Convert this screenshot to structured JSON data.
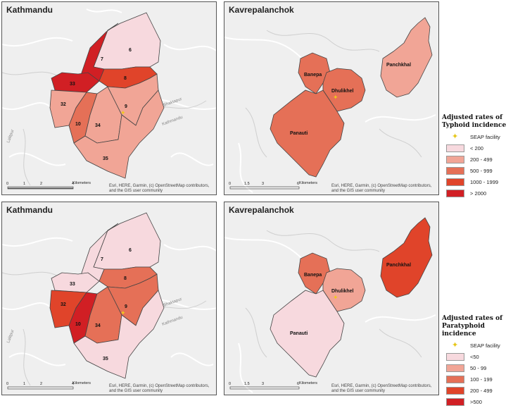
{
  "colors": {
    "c1": "#f7d9de",
    "c2": "#f1a596",
    "c3": "#e57057",
    "c4": "#e0442a",
    "c5": "#d11f24",
    "star": "#f1c91b",
    "basemap": "#efefef",
    "road": "#ffffff"
  },
  "panels": {
    "ktm_typhoid": {
      "title": "Kathmandu",
      "credit": "Esri, HERE, Garmin, (c) OpenStreetMap contributors, and the GIS user community",
      "scale_unit": "Kilometers",
      "scale_ticks": [
        "0",
        "1",
        "2",
        "4"
      ],
      "wards": {
        "w6": {
          "label": "6",
          "color": "c1"
        },
        "w7": {
          "label": "7",
          "color": "c5"
        },
        "w8": {
          "label": "8",
          "color": "c4"
        },
        "w33": {
          "label": "33",
          "color": "c5"
        },
        "w32": {
          "label": "32",
          "color": "c2"
        },
        "w10": {
          "label": "10",
          "color": "c3"
        },
        "w34": {
          "label": "34",
          "color": "c2"
        },
        "w9": {
          "label": "9",
          "color": "c2"
        },
        "w35": {
          "label": "35",
          "color": "c2"
        }
      },
      "place_labels": [
        "Kathmandu",
        "Bhaktapur",
        "Lalitpur"
      ]
    },
    "kav_typhoid": {
      "title": "Kavrepalanchok",
      "credit": "Esri, HERE, Garmin, (c) OpenStreetMap contributors, and the GIS user community",
      "scale_unit": "Kilometers",
      "scale_ticks": [
        "0",
        "1.5",
        "3",
        "6"
      ],
      "munis": {
        "banepa": {
          "label": "Banepa",
          "color": "c3"
        },
        "dhulikhel": {
          "label": "Dhulikhel",
          "color": "c3"
        },
        "panauti": {
          "label": "Panauti",
          "color": "c3"
        },
        "panchkhal": {
          "label": "Panchkhal",
          "color": "c2"
        }
      }
    },
    "ktm_paratyphoid": {
      "title": "Kathmandu",
      "credit": "Esri, HERE, Garmin, (c) OpenStreetMap contributors, and the GIS user community",
      "scale_unit": "Kilometers",
      "scale_ticks": [
        "0",
        "1",
        "2",
        "4"
      ],
      "wards": {
        "w6": {
          "label": "6",
          "color": "c1"
        },
        "w7": {
          "label": "7",
          "color": "c1"
        },
        "w8": {
          "label": "8",
          "color": "c3"
        },
        "w33": {
          "label": "33",
          "color": "c1"
        },
        "w32": {
          "label": "32",
          "color": "c4"
        },
        "w10": {
          "label": "10",
          "color": "c5"
        },
        "w34": {
          "label": "34",
          "color": "c3"
        },
        "w9": {
          "label": "9",
          "color": "c3"
        },
        "w35": {
          "label": "35",
          "color": "c1"
        }
      },
      "place_labels": [
        "Kathmandu",
        "Bhaktapur",
        "Lalitpur"
      ]
    },
    "kav_paratyphoid": {
      "title": "Kavrepalanchok",
      "credit": "Esri, HERE, Garmin, (c) OpenStreetMap contributors, and the GIS user community",
      "scale_unit": "Kilometers",
      "scale_ticks": [
        "0",
        "1.5",
        "3",
        "6"
      ],
      "munis": {
        "banepa": {
          "label": "Banepa",
          "color": "c3"
        },
        "dhulikhel": {
          "label": "Dhulikhel",
          "color": "c2"
        },
        "panauti": {
          "label": "Panauti",
          "color": "c1"
        },
        "panchkhal": {
          "label": "Panchkhal",
          "color": "c4"
        }
      }
    }
  },
  "legends": {
    "typhoid": {
      "title": "Adjusted rates of Typhoid incidence",
      "facility": "SEAP facility",
      "items": [
        {
          "label": "< 200",
          "color": "c1"
        },
        {
          "label": "200 - 499",
          "color": "c2"
        },
        {
          "label": "500 - 999",
          "color": "c3"
        },
        {
          "label": "1000 - 1999",
          "color": "c4"
        },
        {
          "label": "> 2000",
          "color": "c5"
        }
      ]
    },
    "paratyphoid": {
      "title": "Adjusted rates of Paratyphoid incidence",
      "facility": "SEAP facility",
      "items": [
        {
          "label": "<50",
          "color": "c1"
        },
        {
          "label": "50 - 99",
          "color": "c2"
        },
        {
          "label": "100 - 199",
          "color": "c3"
        },
        {
          "label": "200 - 499",
          "color": "c4"
        },
        {
          "label": ">500",
          "color": "c5"
        }
      ]
    }
  }
}
